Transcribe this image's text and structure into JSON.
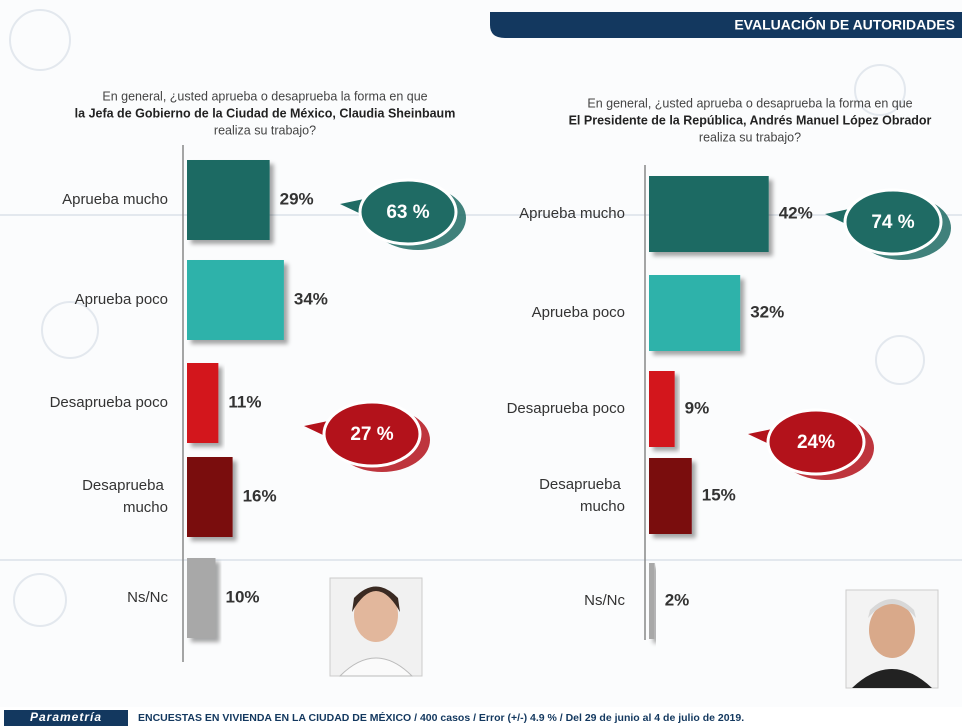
{
  "header": {
    "title": "EVALUACIÓN DE AUTORIDADES"
  },
  "chart_data": [
    {
      "type": "bar",
      "orientation": "horizontal",
      "question": [
        "En general, ¿usted aprueba o desaprueba la forma en que",
        "la Jefa de Gobierno de la Ciudad de México, Claudia Sheinbaum",
        "realiza su trabajo?"
      ],
      "categories": [
        "Aprueba mucho",
        "Aprueba poco",
        "Desaprueba poco",
        "Desaprueba mucho",
        "Ns/Nc"
      ],
      "values": [
        29,
        34,
        11,
        16,
        10
      ],
      "value_labels": [
        "29%",
        "34%",
        "11%",
        "16%",
        "10%"
      ],
      "colors": [
        "#1f6b64",
        "#2eb2aa",
        "#d3121c",
        "#7a0a10",
        "#a8a8a8"
      ],
      "annotations": [
        {
          "value": 63,
          "label": "63 %",
          "color": "#1f6b64"
        },
        {
          "value": 27,
          "label": "27 %",
          "color": "#b3121b"
        }
      ]
    },
    {
      "type": "bar",
      "orientation": "horizontal",
      "question": [
        "En general, ¿usted aprueba o desaprueba la forma en que",
        "El Presidente de la República, Andrés Manuel López Obrador",
        "realiza su trabajo?"
      ],
      "categories": [
        "Aprueba mucho",
        "Aprueba poco",
        "Desaprueba poco",
        "Desaprueba mucho",
        "Ns/Nc"
      ],
      "values": [
        42,
        32,
        9,
        15,
        2
      ],
      "value_labels": [
        "42%",
        "32%",
        "9%",
        "15%",
        "2%"
      ],
      "colors": [
        "#1f6b64",
        "#2eb2aa",
        "#d3121c",
        "#7a0a10",
        "#a8a8a8"
      ],
      "annotations": [
        {
          "value": 74,
          "label": "74 %",
          "color": "#1f6b64"
        },
        {
          "value": 24,
          "label": "24%",
          "color": "#b3121b"
        }
      ]
    }
  ],
  "footer": {
    "logo": "Parametría",
    "note": "ENCUESTAS EN VIVIENDA EN LA CIUDAD DE MÉXICO / 400 casos / Error (+/-) 4.9 % / Del 29 de junio  al 4 de julio de 2019."
  }
}
